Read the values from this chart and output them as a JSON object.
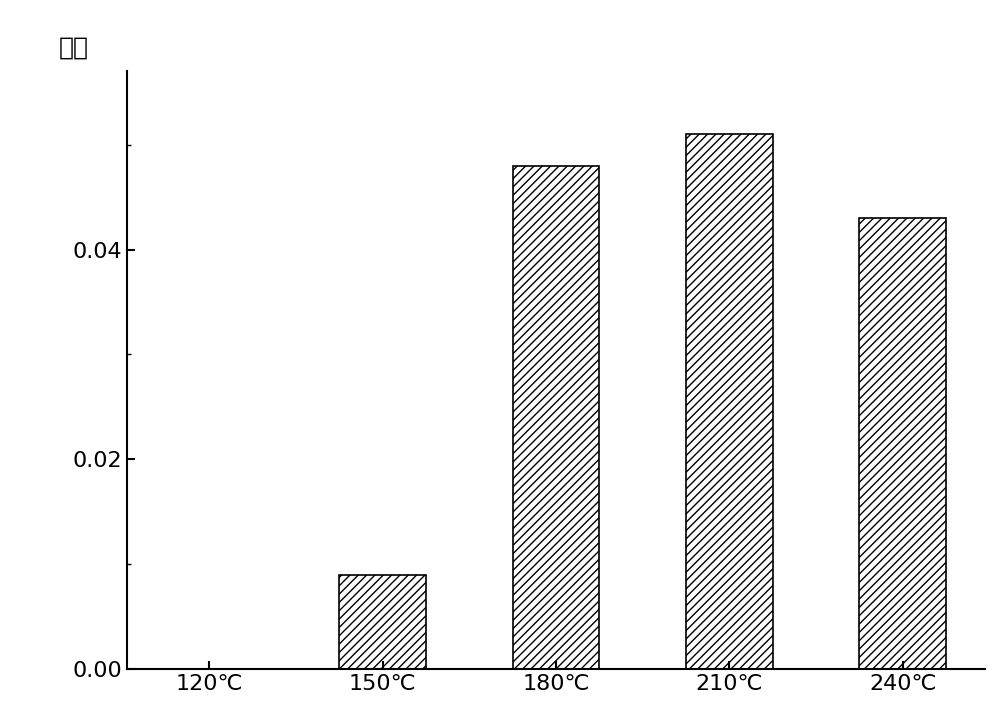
{
  "categories": [
    "120℃",
    "150℃",
    "180℃",
    "210℃",
    "240℃"
  ],
  "values": [
    0.0,
    0.009,
    0.048,
    0.051,
    0.043
  ],
  "ylabel": "产率",
  "ylim": [
    0.0,
    0.057
  ],
  "yticks": [
    0.0,
    0.02,
    0.04
  ],
  "bar_color": "white",
  "bar_edgecolor": "black",
  "hatch": "////",
  "bar_width": 0.5,
  "figsize": [
    10.0,
    7.09
  ],
  "dpi": 100,
  "spine_linewidth": 1.5,
  "tick_fontsize": 16,
  "ylabel_fontsize": 18
}
